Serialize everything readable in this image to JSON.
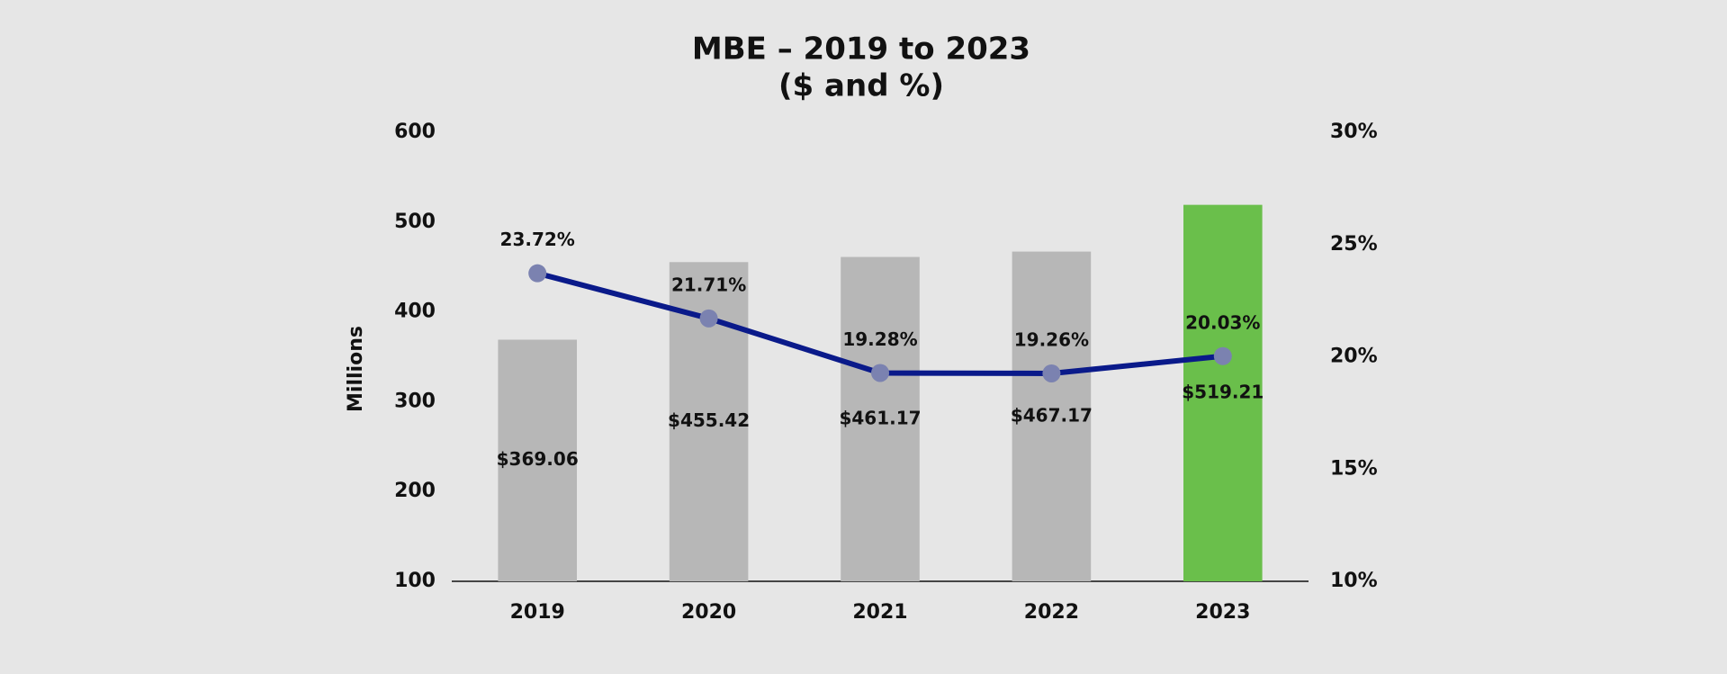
{
  "chart_data": {
    "type": "bar-line",
    "title": "MBE – 2019 to 2023",
    "subtitle": "($ and %)",
    "y_label": "Millions",
    "categories": [
      "2019",
      "2020",
      "2021",
      "2022",
      "2023"
    ],
    "series": [
      {
        "type": "bar",
        "colors": [
          "#b7b7b7",
          "#b7b7b7",
          "#b7b7b7",
          "#b7b7b7",
          "#6abf4b"
        ],
        "values": [
          369.06,
          455.42,
          461.17,
          467.17,
          519.21
        ],
        "value_labels": [
          "$369.06",
          "$455.42",
          "$461.17",
          "$467.17",
          "$519.21"
        ]
      },
      {
        "type": "line",
        "axis": "y2",
        "color": "#0a1a8a",
        "marker_color": "#7b82b0",
        "values": [
          23.72,
          21.71,
          19.28,
          19.26,
          20.03
        ],
        "value_labels": [
          "23.72%",
          "21.71%",
          "19.28%",
          "19.26%",
          "20.03%"
        ]
      }
    ],
    "ylim": [
      100,
      600
    ],
    "yticks": [
      100,
      200,
      300,
      400,
      500,
      600
    ],
    "y2lim": [
      10,
      30
    ],
    "y2ticks": [
      {
        "value": 10,
        "label": "10%"
      },
      {
        "value": 15,
        "label": "15%"
      },
      {
        "value": 20,
        "label": "20%"
      },
      {
        "value": 25,
        "label": "25%"
      },
      {
        "value": 30,
        "label": "30%"
      }
    ]
  }
}
